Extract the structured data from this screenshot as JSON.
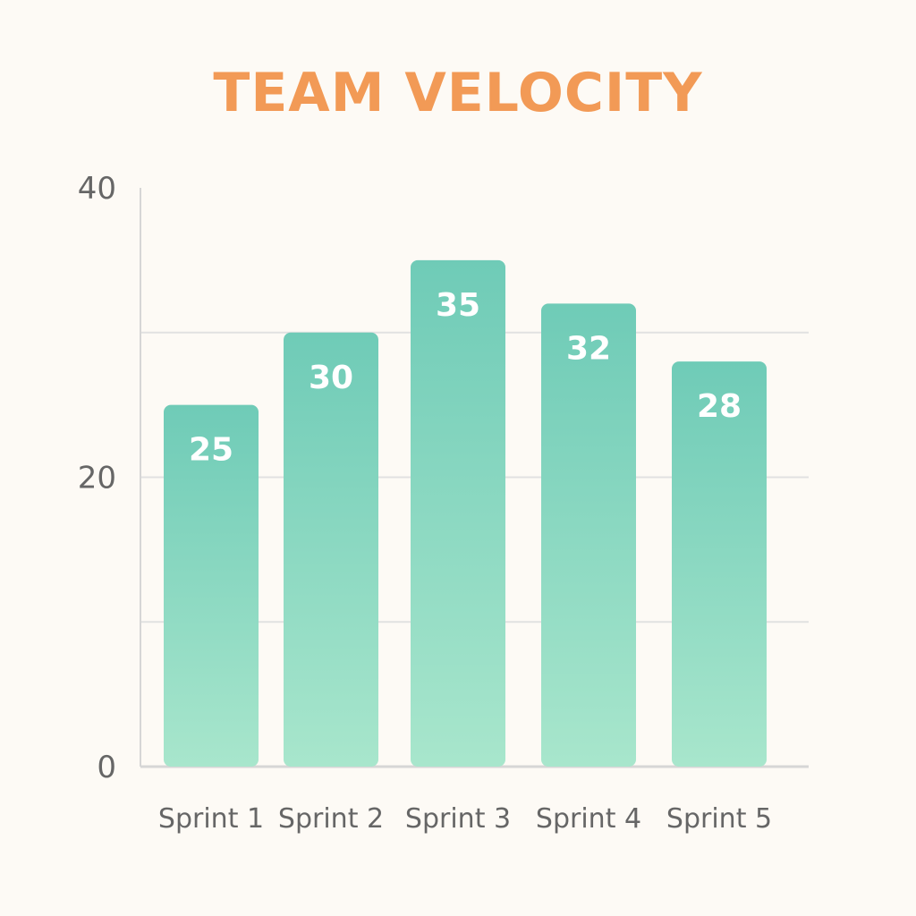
{
  "chart_data": {
    "type": "bar",
    "title": "TEAM VELOCITY",
    "categories": [
      "Sprint 1",
      "Sprint 2",
      "Sprint 3",
      "Sprint 4",
      "Sprint 5"
    ],
    "values": [
      25,
      30,
      35,
      32,
      28
    ],
    "yticks": [
      0,
      20,
      40
    ],
    "ylim": [
      0,
      40
    ],
    "grid": true,
    "xlabel": "",
    "ylabel": ""
  },
  "colors": {
    "title": "#f29a56",
    "bar_top": "#6fcbb7",
    "bar_bottom": "#a8e6cc",
    "bar_label": "#ffffff",
    "grid": "#e1e1e1",
    "axis": "#d6d6d6",
    "text": "#666666",
    "background": "#fdfaf5"
  }
}
